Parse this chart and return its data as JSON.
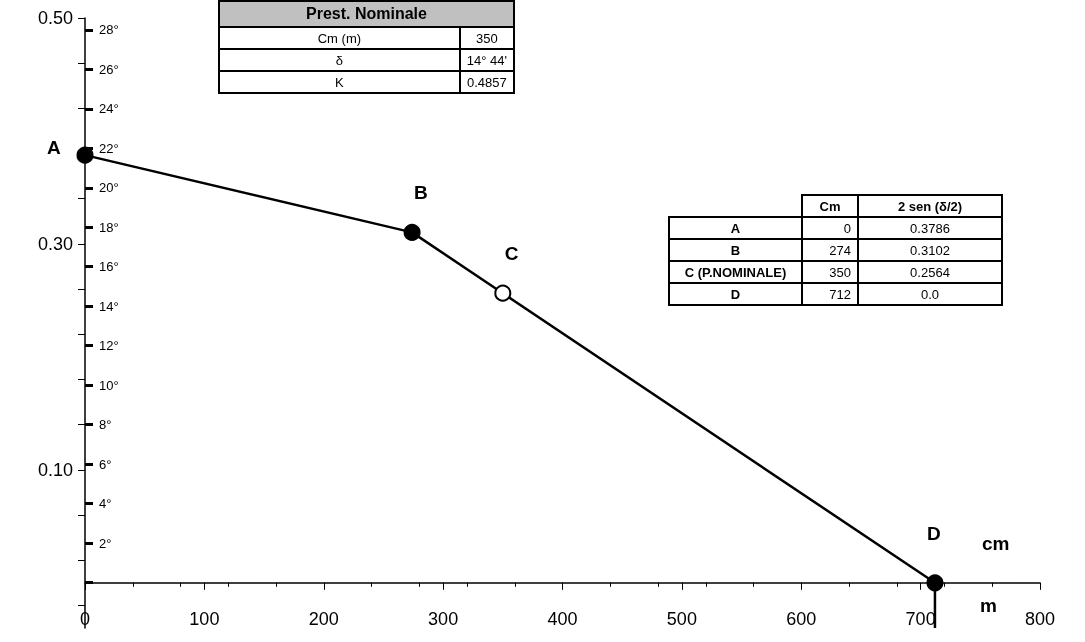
{
  "chart_data": {
    "type": "line",
    "x": [
      0,
      274,
      350,
      712
    ],
    "series": [
      {
        "color": "#000000",
        "colors": [
          "#000000",
          "#000000",
          "#ffffff",
          "#000000"
        ],
        "values": [
          0.3786,
          0.3102,
          0.2564,
          0.0
        ]
      },
      {
        "color": "#000000",
        "x": [
          712,
          712
        ],
        "values": [
          0.0,
          -0.04
        ],
        "marker": "none"
      }
    ],
    "value_labels": [
      "0.3786",
      "0.3102",
      "0.2564",
      "0.0"
    ],
    "xlabel": "m",
    "xlim": [
      0,
      800
    ],
    "xticks": [
      0,
      100,
      200,
      300,
      400,
      500,
      600,
      700,
      800
    ],
    "ylim": [
      -0.04,
      0.5
    ],
    "yticks": [
      {
        "value": 0.5,
        "label": "0.50"
      },
      {
        "value": 0.46,
        "label": null
      },
      {
        "value": 0.42,
        "label": null
      },
      {
        "value": 0.38,
        "label": null
      },
      {
        "value": 0.34,
        "label": null
      },
      {
        "value": 0.3,
        "label": "0.30"
      },
      {
        "value": 0.26,
        "label": null
      },
      {
        "value": 0.22,
        "label": null
      },
      {
        "value": 0.18,
        "label": null
      },
      {
        "value": 0.14,
        "label": null
      },
      {
        "value": 0.1,
        "label": "0.10"
      },
      {
        "value": 0.06,
        "label": null
      },
      {
        "value": 0.02,
        "label": null
      },
      {
        "value": -0.02,
        "label": null
      }
    ],
    "y2lim": [
      -2.3,
      28.6
    ],
    "y2ticks": [
      {
        "value": 0,
        "label": null
      },
      {
        "value": 2,
        "label": "2°"
      },
      {
        "value": 4,
        "label": "4°"
      },
      {
        "value": 6,
        "label": "6°"
      },
      {
        "value": 8,
        "label": "8°"
      },
      {
        "value": 10,
        "label": "10°"
      },
      {
        "value": 12,
        "label": "12°"
      },
      {
        "value": 14,
        "label": "14°"
      },
      {
        "value": 16,
        "label": "16°"
      },
      {
        "value": 18,
        "label": "18°"
      },
      {
        "value": 20,
        "label": "20°"
      },
      {
        "value": 22,
        "label": "22°"
      },
      {
        "value": 24,
        "label": "24°"
      },
      {
        "value": 26,
        "label": "26°"
      },
      {
        "value": 28,
        "label": "28°"
      }
    ],
    "marker": "circle",
    "line_style": "solid",
    "annotations": [
      {
        "text": "A",
        "x": 0,
        "y": 0.3786
      },
      {
        "text": "B",
        "x": 274,
        "y": 0.3102
      },
      {
        "text": "C",
        "x": 350,
        "y": 0.2564
      },
      {
        "text": "D",
        "x": 712,
        "y": 0.0
      },
      "cm",
      "Prest. Nominale",
      "Cm (m)",
      "350",
      "δ",
      "14° 44'",
      "K",
      "0.4857",
      "Cm",
      "2 sen (δ/2)",
      "A",
      "B",
      "C (P.NOMINALE)",
      "D",
      "0",
      "274",
      "350",
      "712"
    ]
  }
}
